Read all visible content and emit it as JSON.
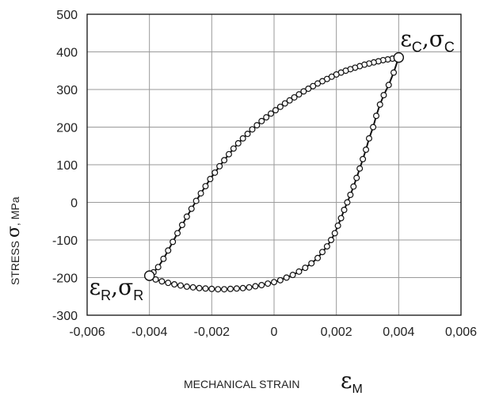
{
  "chart_data": {
    "type": "scatter",
    "xlabel": "MECHANICAL STRAIN",
    "xlabel_symbol": "ε",
    "xlabel_symbol_sub": "M",
    "ylabel": "STRESS ",
    "ylabel_symbol": "σ",
    "ylabel_unit": ", MPa",
    "xlim": [
      -0.006,
      0.006
    ],
    "ylim": [
      -300,
      500
    ],
    "xticks": [
      -0.006,
      -0.004,
      -0.002,
      0,
      0.002,
      0.004,
      0.006
    ],
    "xtick_labels": [
      "-0,006",
      "-0,004",
      "-0,002",
      "0",
      "0,002",
      "0,004",
      "0,006"
    ],
    "yticks": [
      -300,
      -200,
      -100,
      0,
      100,
      200,
      300,
      400,
      500
    ],
    "ytick_labels": [
      "-300",
      "-200",
      "-100",
      "0",
      "100",
      "200",
      "300",
      "400",
      "500"
    ],
    "grid": true,
    "series": [
      {
        "values": [
          {
            "x": -0.00394,
            "y": -198
          },
          {
            "x": -0.0038,
            "y": -205
          },
          {
            "x": -0.0036,
            "y": -210
          },
          {
            "x": -0.0034,
            "y": -214
          },
          {
            "x": -0.0032,
            "y": -218
          },
          {
            "x": -0.003,
            "y": -221
          },
          {
            "x": -0.0028,
            "y": -224
          },
          {
            "x": -0.0026,
            "y": -226
          },
          {
            "x": -0.0024,
            "y": -228
          },
          {
            "x": -0.0022,
            "y": -229
          },
          {
            "x": -0.002,
            "y": -230
          },
          {
            "x": -0.0018,
            "y": -231
          },
          {
            "x": -0.0016,
            "y": -231
          },
          {
            "x": -0.0014,
            "y": -230
          },
          {
            "x": -0.0012,
            "y": -229
          },
          {
            "x": -0.001,
            "y": -228
          },
          {
            "x": -0.0008,
            "y": -226
          },
          {
            "x": -0.0006,
            "y": -223
          },
          {
            "x": -0.0004,
            "y": -220
          },
          {
            "x": -0.0002,
            "y": -216
          },
          {
            "x": 0.0,
            "y": -212
          },
          {
            "x": 0.0002,
            "y": -207
          },
          {
            "x": 0.0004,
            "y": -200
          },
          {
            "x": 0.0006,
            "y": -193
          },
          {
            "x": 0.0008,
            "y": -184
          },
          {
            "x": 0.001,
            "y": -174
          },
          {
            "x": 0.0012,
            "y": -162
          },
          {
            "x": 0.0014,
            "y": -148
          },
          {
            "x": 0.00155,
            "y": -132
          },
          {
            "x": 0.0017,
            "y": -117
          },
          {
            "x": 0.00183,
            "y": -100
          },
          {
            "x": 0.00195,
            "y": -82
          },
          {
            "x": 0.00205,
            "y": -62
          },
          {
            "x": 0.00215,
            "y": -42
          },
          {
            "x": 0.00225,
            "y": -20
          },
          {
            "x": 0.00235,
            "y": 0
          },
          {
            "x": 0.00245,
            "y": 20
          },
          {
            "x": 0.00255,
            "y": 42
          },
          {
            "x": 0.00265,
            "y": 65
          },
          {
            "x": 0.00275,
            "y": 90
          },
          {
            "x": 0.00285,
            "y": 115
          },
          {
            "x": 0.00295,
            "y": 140
          },
          {
            "x": 0.00305,
            "y": 170
          },
          {
            "x": 0.00318,
            "y": 200
          },
          {
            "x": 0.00328,
            "y": 230
          },
          {
            "x": 0.0034,
            "y": 260
          },
          {
            "x": 0.00352,
            "y": 285
          },
          {
            "x": 0.00368,
            "y": 312
          },
          {
            "x": 0.00384,
            "y": 345
          },
          {
            "x": 0.0038,
            "y": 382
          },
          {
            "x": 0.00365,
            "y": 380
          },
          {
            "x": 0.0035,
            "y": 378
          },
          {
            "x": 0.00335,
            "y": 375
          },
          {
            "x": 0.0032,
            "y": 372
          },
          {
            "x": 0.00305,
            "y": 369
          },
          {
            "x": 0.0029,
            "y": 366
          },
          {
            "x": 0.00275,
            "y": 362
          },
          {
            "x": 0.0026,
            "y": 358
          },
          {
            "x": 0.00245,
            "y": 354
          },
          {
            "x": 0.0023,
            "y": 350
          },
          {
            "x": 0.00215,
            "y": 345
          },
          {
            "x": 0.002,
            "y": 340
          },
          {
            "x": 0.00185,
            "y": 334
          },
          {
            "x": 0.0017,
            "y": 328
          },
          {
            "x": 0.00155,
            "y": 322
          },
          {
            "x": 0.0014,
            "y": 316
          },
          {
            "x": 0.00125,
            "y": 309
          },
          {
            "x": 0.0011,
            "y": 302
          },
          {
            "x": 0.00095,
            "y": 295
          },
          {
            "x": 0.0008,
            "y": 287
          },
          {
            "x": 0.00065,
            "y": 279
          },
          {
            "x": 0.0005,
            "y": 271
          },
          {
            "x": 0.00035,
            "y": 263
          },
          {
            "x": 0.0002,
            "y": 254
          },
          {
            "x": 5e-05,
            "y": 245
          },
          {
            "x": -0.0001,
            "y": 236
          },
          {
            "x": -0.00025,
            "y": 226
          },
          {
            "x": -0.0004,
            "y": 216
          },
          {
            "x": -0.00055,
            "y": 205
          },
          {
            "x": -0.0007,
            "y": 194
          },
          {
            "x": -0.00085,
            "y": 182
          },
          {
            "x": -0.001,
            "y": 170
          },
          {
            "x": -0.00115,
            "y": 157
          },
          {
            "x": -0.0013,
            "y": 143
          },
          {
            "x": -0.00145,
            "y": 128
          },
          {
            "x": -0.0016,
            "y": 112
          },
          {
            "x": -0.00175,
            "y": 96
          },
          {
            "x": -0.0019,
            "y": 79
          },
          {
            "x": -0.00205,
            "y": 62
          },
          {
            "x": -0.0022,
            "y": 43
          },
          {
            "x": -0.00235,
            "y": 24
          },
          {
            "x": -0.0025,
            "y": 4
          },
          {
            "x": -0.00265,
            "y": -17
          },
          {
            "x": -0.0028,
            "y": -38
          },
          {
            "x": -0.00295,
            "y": -60
          },
          {
            "x": -0.0031,
            "y": -82
          },
          {
            "x": -0.00325,
            "y": -105
          },
          {
            "x": -0.0034,
            "y": -128
          },
          {
            "x": -0.00355,
            "y": -150
          },
          {
            "x": -0.00372,
            "y": -172
          },
          {
            "x": -0.00387,
            "y": -186
          }
        ]
      }
    ],
    "annotations": [
      {
        "x": 0.004,
        "y": 385,
        "symbol": "ε",
        "symbol_sub": "C",
        "sep": ",",
        "symbol2": "σ",
        "symbol2_sub": "C",
        "anchor": "top-right"
      },
      {
        "x": -0.004,
        "y": -195,
        "symbol": "ε",
        "symbol_sub": "R",
        "sep": ",",
        "symbol2": "σ",
        "symbol2_sub": "R",
        "anchor": "bottom-left"
      }
    ],
    "closing_segments": [
      [
        {
          "x": -0.004,
          "y": -195
        },
        {
          "x": -0.00394,
          "y": -198
        }
      ],
      [
        {
          "x": 0.00384,
          "y": 345
        },
        {
          "x": 0.004,
          "y": 385
        }
      ],
      [
        {
          "x": 0.004,
          "y": 385
        },
        {
          "x": 0.0038,
          "y": 382
        }
      ],
      [
        {
          "x": -0.00387,
          "y": -186
        },
        {
          "x": -0.004,
          "y": -195
        }
      ]
    ]
  }
}
